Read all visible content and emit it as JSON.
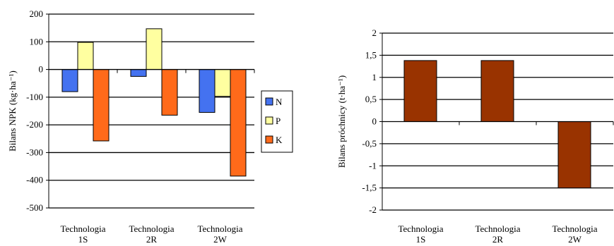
{
  "chart_data": [
    {
      "type": "bar",
      "title": "",
      "xlabel": "",
      "ylabel": "Bilans NPK (kg·ha⁻¹)",
      "ylim": [
        -500,
        200
      ],
      "yticks": [
        "200",
        "100",
        "0",
        "-100",
        "-200",
        "-300",
        "-400",
        "-500"
      ],
      "ytick_values": [
        200,
        100,
        0,
        -100,
        -200,
        -300,
        -400,
        -500
      ],
      "categories": [
        {
          "line1": "Technologia",
          "line2": "1S"
        },
        {
          "line1": "Technologia",
          "line2": "2R"
        },
        {
          "line1": "Technologia",
          "line2": "2W"
        }
      ],
      "series": [
        {
          "name": "N",
          "color": "#4472f0",
          "values": [
            -80,
            -25,
            -155
          ]
        },
        {
          "name": "P",
          "color": "#ffffa0",
          "values": [
            98,
            147,
            -97
          ]
        },
        {
          "name": "K",
          "color": "#ff6a1a",
          "values": [
            -258,
            -165,
            -385
          ]
        }
      ],
      "grid": true,
      "legend": "right"
    },
    {
      "type": "bar",
      "title": "",
      "xlabel": "",
      "ylabel": "Bilans próchnicy (t·ha⁻¹)",
      "ylim": [
        -2,
        2
      ],
      "yticks": [
        "2",
        "1,5",
        "1",
        "0,5",
        "0",
        "-0,5",
        "-1",
        "-1,5",
        "-2"
      ],
      "ytick_values": [
        2,
        1.5,
        1,
        0.5,
        0,
        -0.5,
        -1,
        -1.5,
        -2
      ],
      "categories": [
        {
          "line1": "Technologia",
          "line2": "1S"
        },
        {
          "line1": "Technologia",
          "line2": "2R"
        },
        {
          "line1": "Technologia",
          "line2": "2W"
        }
      ],
      "series": [
        {
          "color": "#993300",
          "values": [
            1.38,
            1.38,
            -1.5
          ]
        }
      ],
      "grid": true,
      "legend": "none"
    }
  ]
}
